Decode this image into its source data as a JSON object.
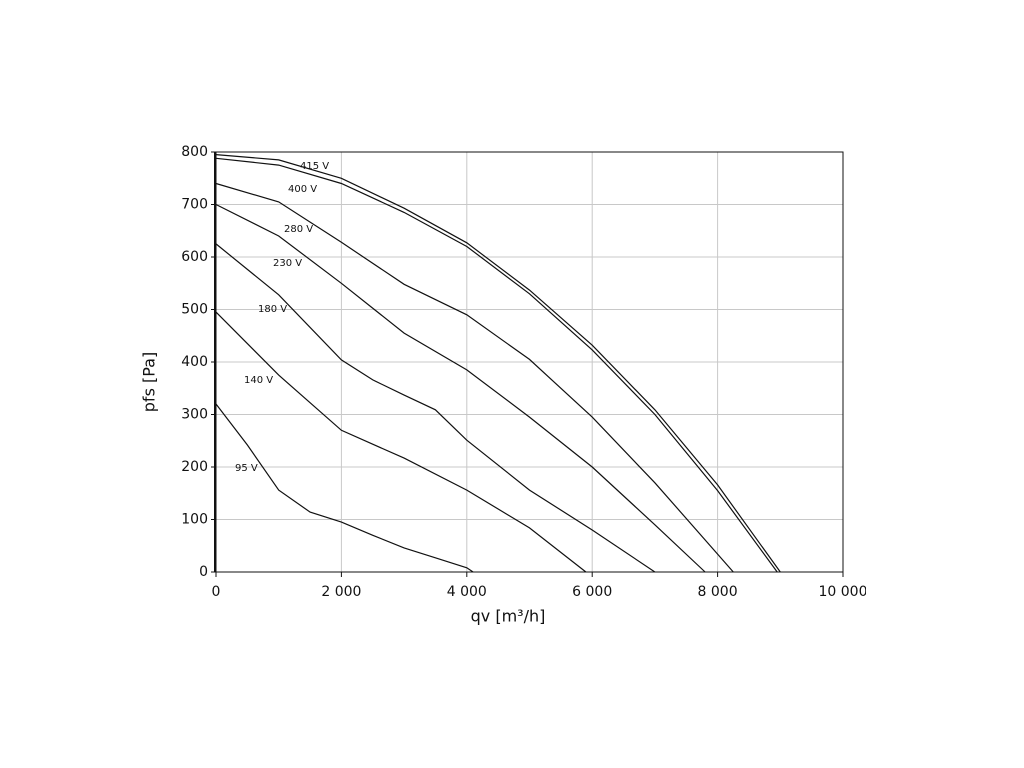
{
  "chart_data": {
    "type": "line",
    "x_label": "qv [m³/h]",
    "y_label": "pfs [Pa]",
    "xlim": [
      0,
      10000
    ],
    "ylim": [
      0,
      800
    ],
    "xticks": [
      0,
      {
        "value": 2000,
        "label": "2 000"
      },
      {
        "value": 4000,
        "label": "4 000"
      },
      {
        "value": 6000,
        "label": "6 000"
      },
      {
        "value": 8000,
        "label": "8 000"
      },
      {
        "value": 10000,
        "label": "10 000"
      }
    ],
    "yticks": [
      0,
      100,
      200,
      300,
      400,
      500,
      600,
      700,
      800
    ],
    "grid": true,
    "series": [
      {
        "name": "415 V",
        "color": "#111111",
        "x": [
          0,
          1000,
          2000,
          3000,
          4000,
          5000,
          6000,
          7000,
          8000,
          9000
        ],
        "values": [
          795,
          785,
          750,
          693,
          627,
          537,
          432,
          309,
          166,
          0
        ]
      },
      {
        "name": "400 V",
        "color": "#111111",
        "x": [
          0,
          1000,
          2000,
          3000,
          4000,
          5000,
          6000,
          7000,
          8000,
          8950
        ],
        "values": [
          788,
          775,
          740,
          685,
          620,
          530,
          423,
          300,
          155,
          0
        ]
      },
      {
        "name": "280 V",
        "color": "#111111",
        "x": [
          0,
          1000,
          2000,
          3000,
          4000,
          5000,
          6000,
          7000,
          8250
        ],
        "values": [
          740,
          705,
          628,
          548,
          490,
          405,
          295,
          170,
          0
        ]
      },
      {
        "name": "230 V",
        "color": "#111111",
        "x": [
          0,
          1000,
          2000,
          3000,
          4000,
          5000,
          6000,
          7000,
          7800
        ],
        "values": [
          700,
          640,
          550,
          455,
          385,
          295,
          200,
          90,
          0
        ]
      },
      {
        "name": "180 V",
        "color": "#111111",
        "x": [
          0,
          1000,
          2000,
          2500,
          3000,
          3500,
          4000,
          5000,
          6000,
          7000
        ],
        "values": [
          625,
          528,
          404,
          366,
          337,
          309,
          251,
          156,
          80,
          0
        ]
      },
      {
        "name": "140 V",
        "color": "#111111",
        "x": [
          0,
          1000,
          2000,
          3000,
          4000,
          5000,
          5900
        ],
        "values": [
          495,
          375,
          270,
          217,
          156,
          84,
          0
        ]
      },
      {
        "name": "95 V",
        "color": "#111111",
        "x": [
          0,
          500,
          1000,
          1500,
          2000,
          2500,
          3000,
          3500,
          4000,
          4100
        ],
        "values": [
          320,
          242,
          156,
          114,
          95,
          70,
          46,
          27,
          8,
          0
        ]
      }
    ]
  }
}
